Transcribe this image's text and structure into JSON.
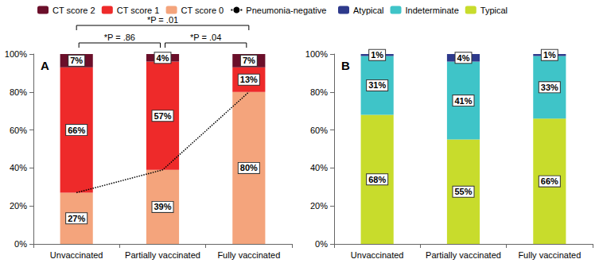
{
  "chart_data": [
    {
      "type": "bar",
      "title": "A",
      "stacked": true,
      "data_labels": true,
      "grid": false,
      "legend": "top",
      "categories": [
        "Unvaccinated",
        "Partially vaccinated",
        "Fully vaccinated"
      ],
      "ylim": [
        0,
        100
      ],
      "yticks": [
        {
          "value": 0,
          "label": "0%"
        },
        {
          "value": 20,
          "label": "20%"
        },
        {
          "value": 40,
          "label": "40%"
        },
        {
          "value": 60,
          "label": "60%"
        },
        {
          "value": 80,
          "label": "80%"
        },
        {
          "value": 100,
          "label": "100%"
        }
      ],
      "series": [
        {
          "name": "CT score 0",
          "color": "#f4a47c",
          "values": [
            27,
            39,
            80
          ],
          "value_labels": [
            "27%",
            "39%",
            "80%"
          ]
        },
        {
          "name": "CT score 1",
          "color": "#ee2a2a",
          "values": [
            66,
            57,
            13
          ],
          "value_labels": [
            "66%",
            "57%",
            "13%"
          ]
        },
        {
          "name": "CT score 2",
          "color": "#6b0f2a",
          "values": [
            7,
            4,
            7
          ],
          "value_labels": [
            "7%",
            "4%",
            "7%"
          ]
        },
        {
          "name": "Pneumonia-negative",
          "type": "line",
          "line_style": "dotted",
          "color": "#000000",
          "values": [
            27,
            39,
            80
          ]
        }
      ],
      "annotations": [
        {
          "text": "*P = .01",
          "from": "Unvaccinated",
          "to": "Fully vaccinated"
        },
        {
          "text": "*P = .86",
          "from": "Unvaccinated",
          "to": "Partially vaccinated"
        },
        {
          "text": "*P = .04",
          "from": "Partially vaccinated",
          "to": "Fully vaccinated"
        }
      ]
    },
    {
      "type": "bar",
      "title": "B",
      "stacked": true,
      "data_labels": true,
      "grid": false,
      "legend": "top",
      "categories": [
        "Unvaccinated",
        "Partially vaccinated",
        "Fully vaccinated"
      ],
      "ylim": [
        0,
        100
      ],
      "yticks": [
        {
          "value": 0,
          "label": "0%"
        },
        {
          "value": 20,
          "label": "20%"
        },
        {
          "value": 40,
          "label": "40%"
        },
        {
          "value": 60,
          "label": "60%"
        },
        {
          "value": 80,
          "label": "80%"
        },
        {
          "value": 100,
          "label": "100%"
        }
      ],
      "series": [
        {
          "name": "Typical",
          "color": "#c8dc2c",
          "values": [
            68,
            55,
            66
          ],
          "value_labels": [
            "68%",
            "55%",
            "66%"
          ]
        },
        {
          "name": "Indeterminate",
          "color": "#3fc4c8",
          "values": [
            31,
            41,
            33
          ],
          "value_labels": [
            "31%",
            "41%",
            "33%"
          ]
        },
        {
          "name": "Atypical",
          "color": "#2e3a8c",
          "values": [
            1,
            4,
            1
          ],
          "value_labels": [
            "1%",
            "4%",
            "1%"
          ]
        }
      ]
    }
  ]
}
